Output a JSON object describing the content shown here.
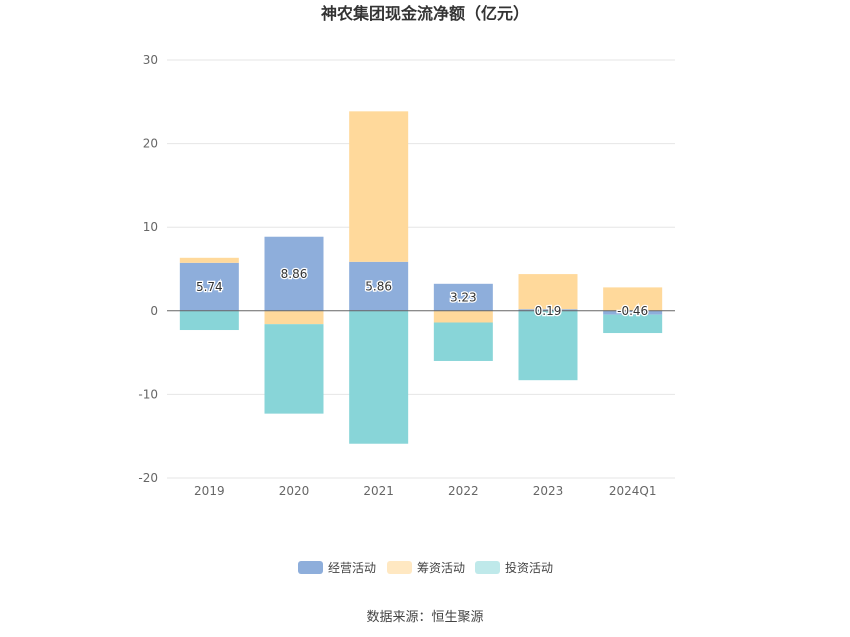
{
  "chart_data": {
    "type": "bar",
    "stacked": true,
    "title": "神农集团现金流净额（亿元）",
    "categories": [
      "2019",
      "2020",
      "2021",
      "2022",
      "2023",
      "2024Q1"
    ],
    "ylim": [
      -20,
      30
    ],
    "yticks": [
      30,
      20,
      10,
      0,
      -10,
      -20
    ],
    "grid": true,
    "legend_position": "bottom",
    "series": [
      {
        "name": "经营活动",
        "color": "#8eaedb",
        "values": [
          5.74,
          8.86,
          5.86,
          3.23,
          0.19,
          -0.46
        ],
        "labels": [
          "5.74",
          "8.86",
          "5.86",
          "3.23",
          "0.19",
          "-0.46"
        ]
      },
      {
        "name": "筹资活动",
        "color": "#ffd99b",
        "values": [
          0.6,
          -1.6,
          18.0,
          -1.4,
          4.2,
          2.8
        ]
      },
      {
        "name": "投资活动",
        "color": "#88d5d8",
        "values": [
          -2.3,
          -10.7,
          -15.9,
          -4.6,
          -8.3,
          -2.2
        ]
      }
    ],
    "legend_colors": [
      "#8eaedb",
      "#ffe8c2",
      "#bfe9ea"
    ],
    "source": "数据来源：恒生聚源"
  }
}
